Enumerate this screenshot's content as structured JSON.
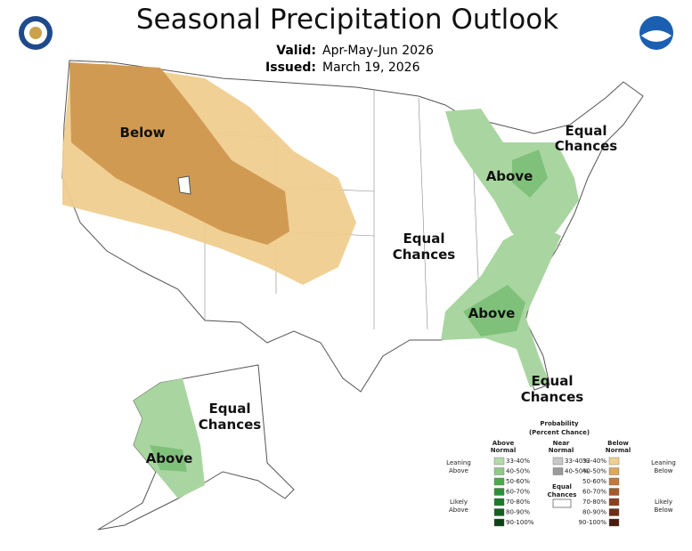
{
  "header": {
    "title": "Seasonal Precipitation Outlook",
    "valid_label": "Valid:",
    "valid_value": "Apr-May-Jun 2026",
    "issued_label": "Issued:",
    "issued_value": "March 19, 2026"
  },
  "map_labels": {
    "below": "Below",
    "above_northeast": "Above",
    "above_southeast": "Above",
    "above_alaska": "Above",
    "equal_northeast": [
      "Equal",
      "Chances"
    ],
    "equal_central": [
      "Equal",
      "Chances"
    ],
    "equal_florida": [
      "Equal",
      "Chances"
    ],
    "equal_alaska": [
      "Equal",
      "Chances"
    ]
  },
  "legend": {
    "title": [
      "Probability",
      "(Percent Chance)"
    ],
    "above": {
      "heading": [
        "Above",
        "Normal"
      ],
      "levels": [
        "33-40%",
        "40-50%",
        "50-60%",
        "60-70%",
        "70-80%",
        "80-90%",
        "90-100%"
      ]
    },
    "near": {
      "heading": [
        "Near",
        "Normal"
      ],
      "levels": [
        "33-40%",
        "40-50%"
      ]
    },
    "below": {
      "heading": [
        "Below",
        "Normal"
      ],
      "levels": [
        "33-40%",
        "40-50%",
        "50-60%",
        "60-70%",
        "70-80%",
        "80-90%",
        "90-100%"
      ]
    },
    "equal": [
      "Equal",
      "Chances"
    ],
    "leaning_above": [
      "Leaning",
      "Above"
    ],
    "likely_above": [
      "Likely",
      "Above"
    ],
    "leaning_below": [
      "Leaning",
      "Below"
    ],
    "likely_below": [
      "Likely",
      "Below"
    ]
  }
}
